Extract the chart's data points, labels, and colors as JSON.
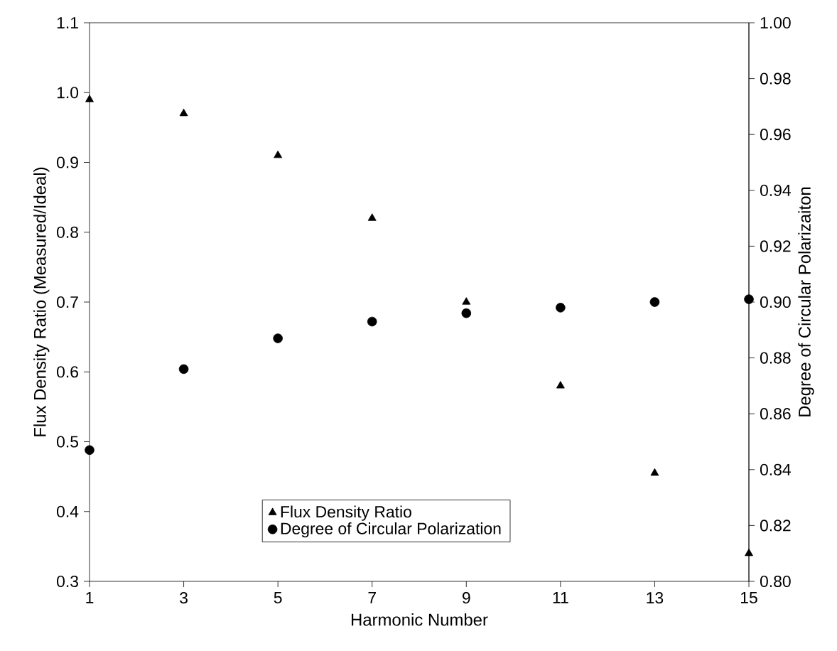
{
  "chart_data": {
    "type": "scatter",
    "xlabel": "Harmonic Number",
    "ylabel": "Flux Density Ratio (Measured/Ideal)",
    "y2label": "Degree of Circular Polarizaiton",
    "x": [
      1,
      3,
      5,
      7,
      9,
      11,
      13,
      15
    ],
    "series": [
      {
        "name": "Flux Density Ratio",
        "color": "#000000",
        "marker": "triangle",
        "values": [
          0.99,
          0.97,
          0.91,
          0.82,
          0.7,
          0.58,
          0.455,
          0.34
        ]
      },
      {
        "name": "Degree of Circular Polarization",
        "color": "#000000",
        "marker": "circle",
        "axis": "y2",
        "values": [
          0.847,
          0.876,
          0.887,
          0.893,
          0.896,
          0.898,
          0.9,
          0.901
        ]
      }
    ],
    "xlim": [
      1,
      15
    ],
    "xticks": [
      1,
      3,
      5,
      7,
      9,
      11,
      13,
      15
    ],
    "ylim": [
      0.3,
      1.1
    ],
    "yticks": [
      0.3,
      0.4,
      0.5,
      0.6,
      0.7,
      0.8,
      0.9,
      {
        "value": 1.0,
        "label": "1.0"
      },
      1.1
    ],
    "y2lim": [
      0.8,
      1.0
    ],
    "y2ticks": [
      {
        "value": 0.8,
        "label": "0.80"
      },
      {
        "value": 0.82,
        "label": "0.82"
      },
      {
        "value": 0.84,
        "label": "0.84"
      },
      {
        "value": 0.86,
        "label": "0.86"
      },
      {
        "value": 0.88,
        "label": "0.88"
      },
      {
        "value": 0.9,
        "label": "0.90"
      },
      {
        "value": 0.92,
        "label": "0.92"
      },
      {
        "value": 0.94,
        "label": "0.94"
      },
      {
        "value": 0.96,
        "label": "0.96"
      },
      {
        "value": 0.98,
        "label": "0.98"
      },
      {
        "value": 1.0,
        "label": "1.00"
      }
    ],
    "legend": "bottom",
    "grid": false
  }
}
